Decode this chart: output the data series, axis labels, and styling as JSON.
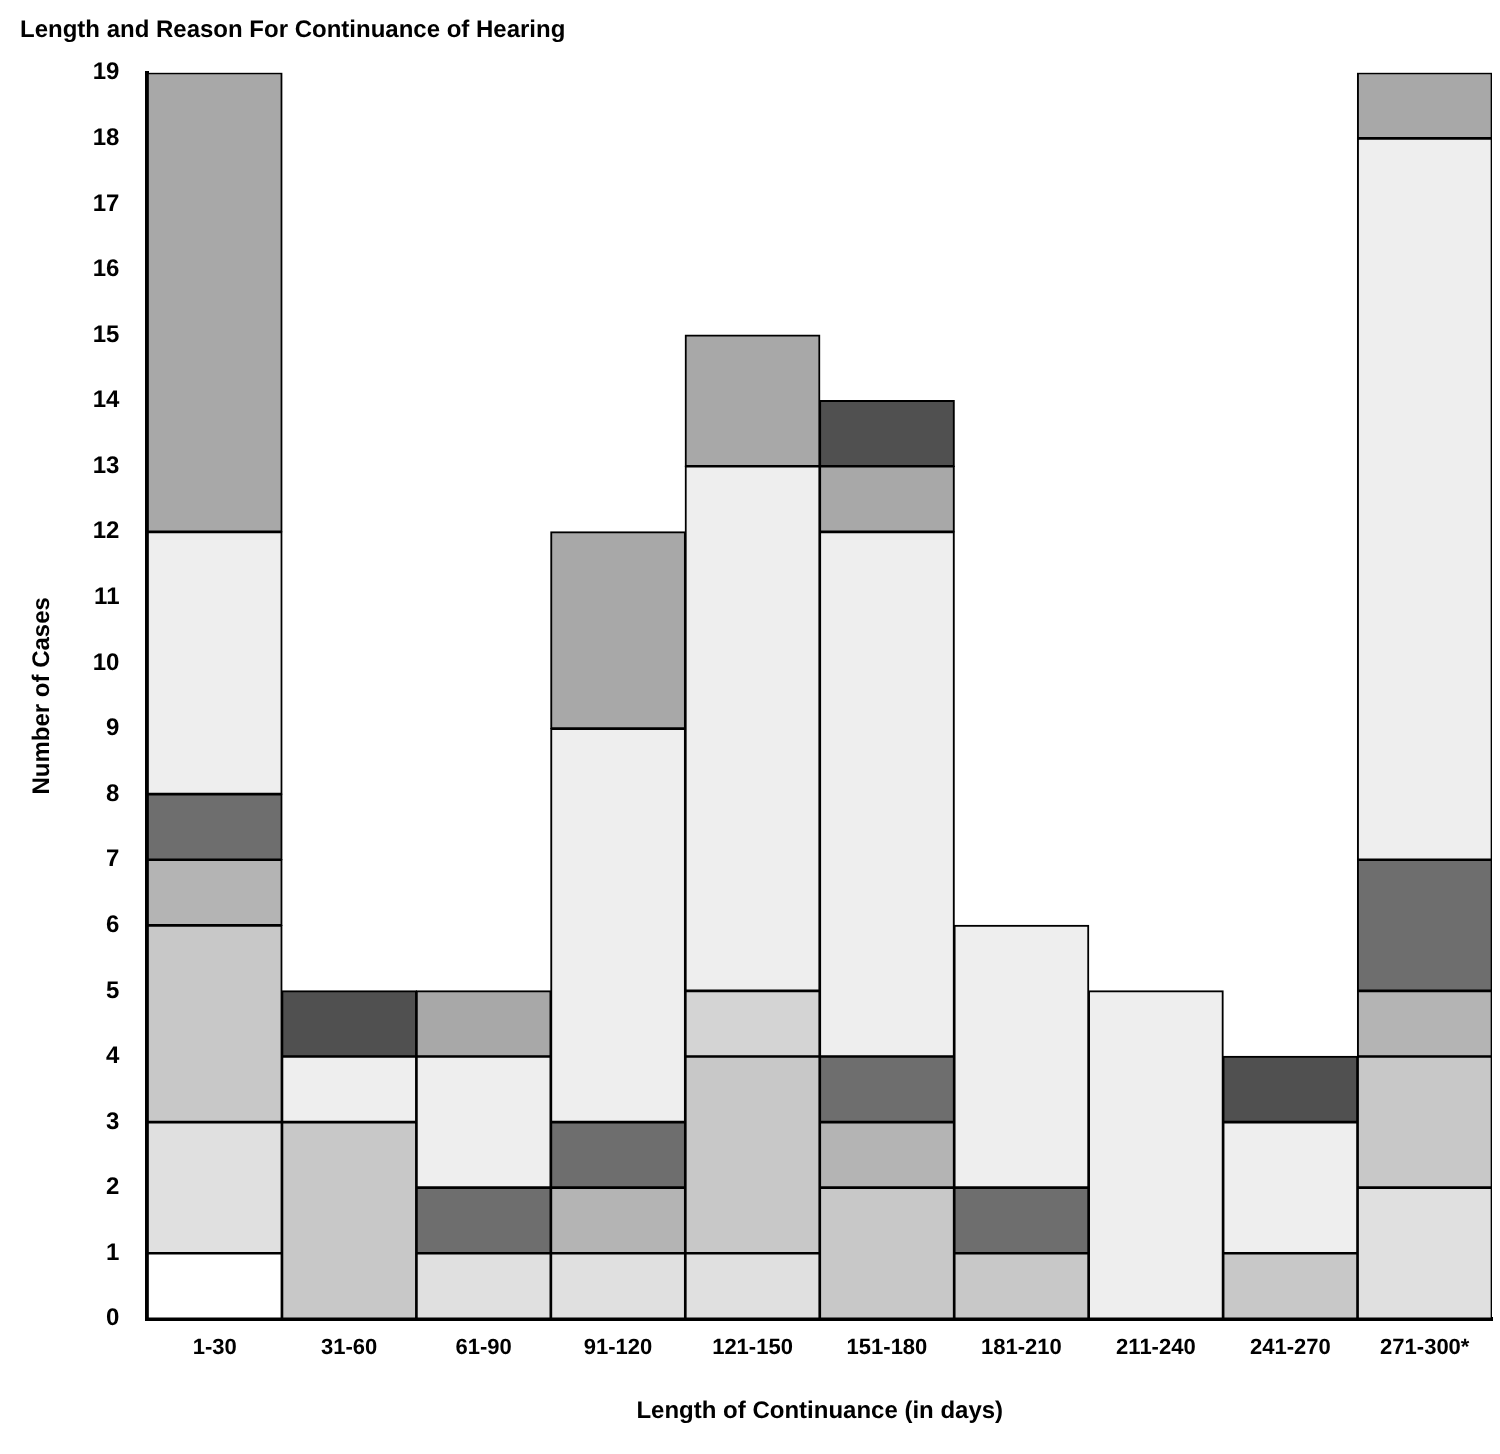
{
  "chart_data": {
    "type": "bar",
    "stacked": true,
    "title": "Length and Reason For Continuance of Hearing",
    "xlabel": "Length of Continuance (in days)",
    "ylabel": "Number of Cases",
    "categories": [
      "1-30",
      "31-60",
      "61-90",
      "91-120",
      "121-150",
      "151-180",
      "181-210",
      "211-240",
      "241-270",
      "271-300*"
    ],
    "series": [
      {
        "color": "#ffffff",
        "values": [
          1,
          0,
          0,
          0,
          0,
          0,
          0,
          0,
          0,
          0
        ]
      },
      {
        "color": "#e0e0e0",
        "values": [
          2,
          0,
          1,
          1,
          1,
          0,
          0,
          0,
          0,
          2
        ]
      },
      {
        "color": "#c8c8c8",
        "values": [
          3,
          3,
          0,
          0,
          3,
          2,
          1,
          0,
          1,
          2
        ]
      },
      {
        "color": "#d4d4d4",
        "values": [
          0,
          0,
          0,
          0,
          1,
          0,
          0,
          0,
          0,
          0
        ]
      },
      {
        "color": "#b4b4b4",
        "values": [
          1,
          0,
          0,
          1,
          0,
          1,
          0,
          0,
          0,
          1
        ]
      },
      {
        "color": "#6e6e6e",
        "values": [
          1,
          0,
          1,
          1,
          0,
          1,
          1,
          0,
          0,
          2
        ]
      },
      {
        "color": "#eeeeee",
        "values": [
          4,
          1,
          2,
          6,
          8,
          8,
          4,
          5,
          2,
          11
        ]
      },
      {
        "color": "#a8a8a8",
        "values": [
          7,
          0,
          1,
          3,
          2,
          1,
          0,
          0,
          0,
          1
        ]
      },
      {
        "color": "#505050",
        "values": [
          0,
          1,
          0,
          0,
          0,
          1,
          0,
          0,
          1,
          0
        ]
      }
    ],
    "ylim": [
      0,
      19
    ],
    "yticks": [
      0,
      1,
      2,
      3,
      4,
      5,
      6,
      7,
      8,
      9,
      10,
      11,
      12,
      13,
      14,
      15,
      16,
      17,
      18,
      19
    ],
    "grid": false,
    "legend": false
  }
}
